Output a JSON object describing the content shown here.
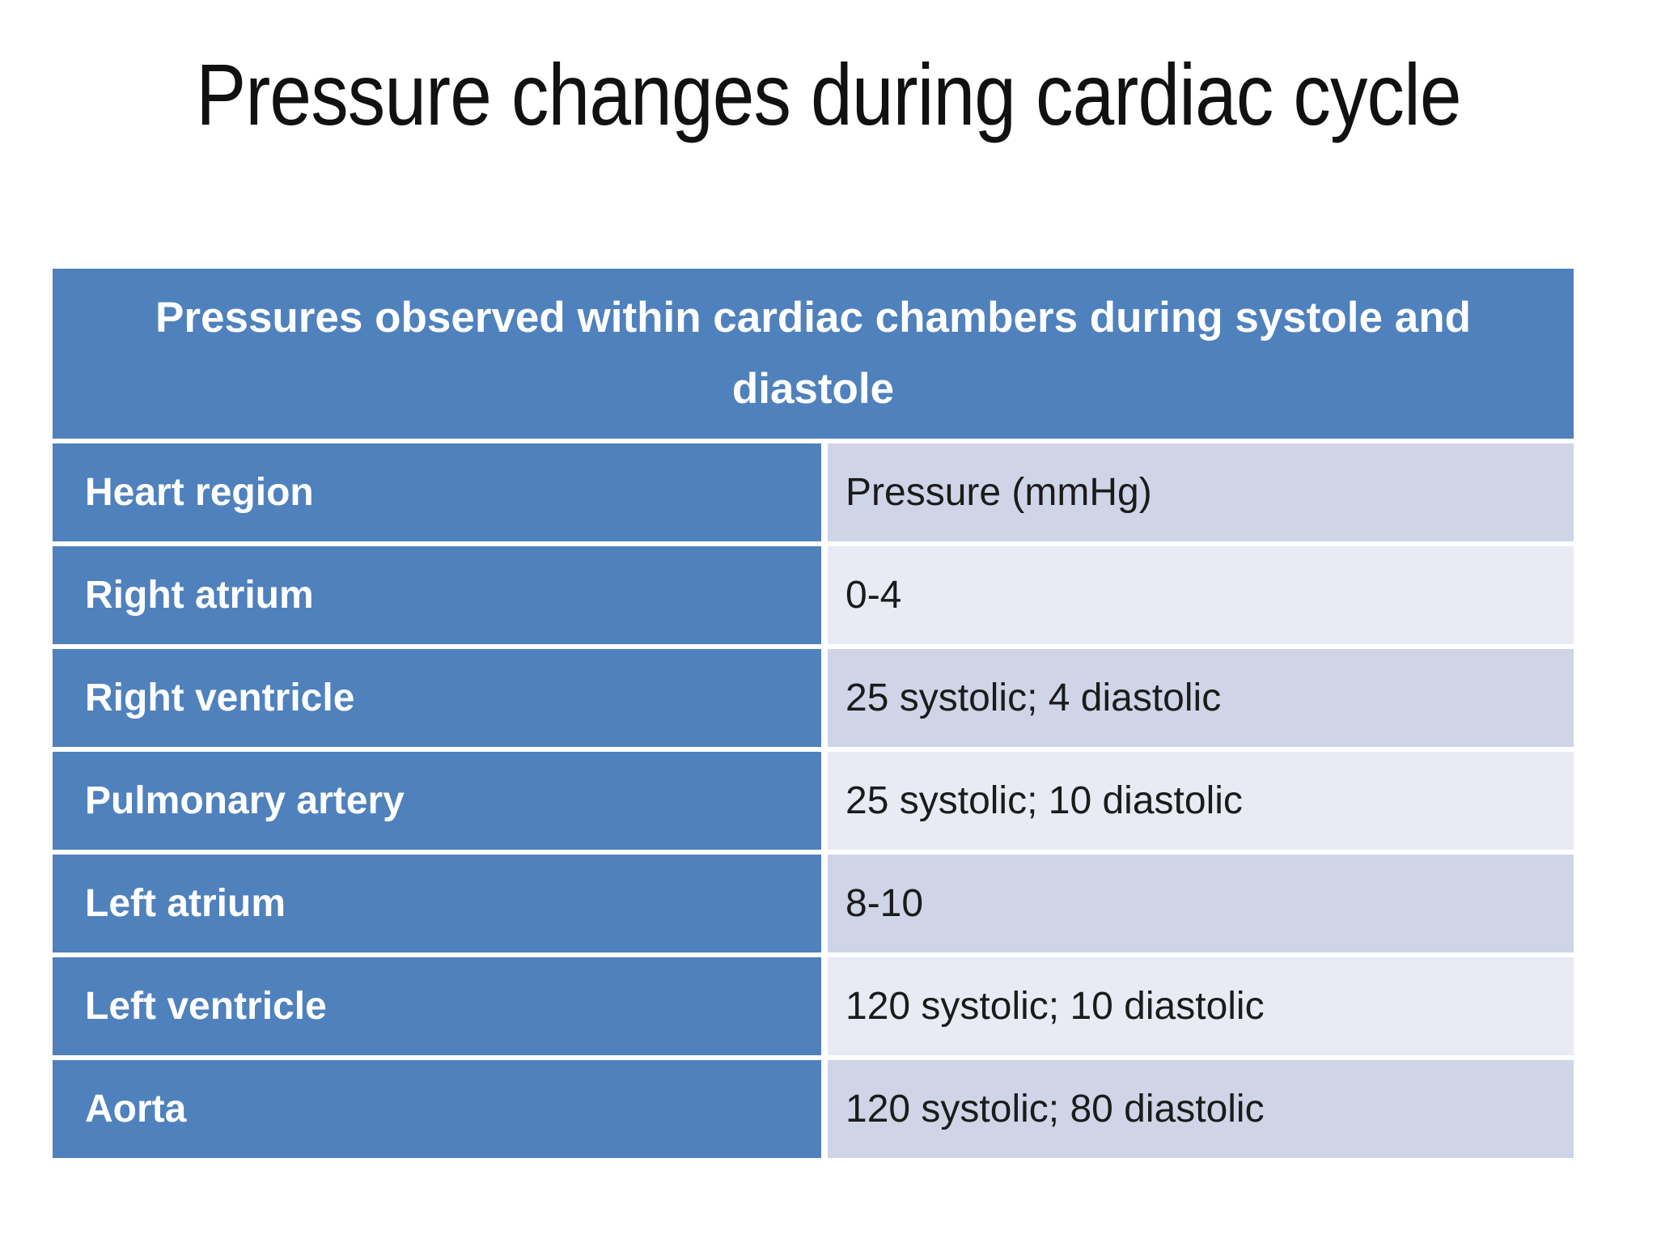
{
  "slide": {
    "title": "Pressure changes during cardiac cycle",
    "background_color": "#FFFFFF"
  },
  "table": {
    "caption": "Pressures observed within cardiac chambers during systole and diastole",
    "column_headers": {
      "region": "Heart region",
      "pressure": "Pressure (mmHg)"
    },
    "rows": [
      {
        "region": "Right atrium",
        "pressure": "0-4"
      },
      {
        "region": "Right ventricle",
        "pressure": "25 systolic; 4 diastolic"
      },
      {
        "region": "Pulmonary artery",
        "pressure": "25 systolic; 10 diastolic"
      },
      {
        "region": "Left atrium",
        "pressure": "8-10"
      },
      {
        "region": "Left ventricle",
        "pressure": "120 systolic; 10 diastolic"
      },
      {
        "region": "Aorta",
        "pressure": "120 systolic; 80 diastolic"
      }
    ],
    "colors": {
      "header_bg": "#4F81BD",
      "region_column_bg": "#4F81BD",
      "band_dark": "#CFD5E7",
      "band_light": "#E9EBF4",
      "header_text": "#FFFFFF",
      "value_text": "#1B1B1B",
      "title_text": "#111111"
    }
  }
}
